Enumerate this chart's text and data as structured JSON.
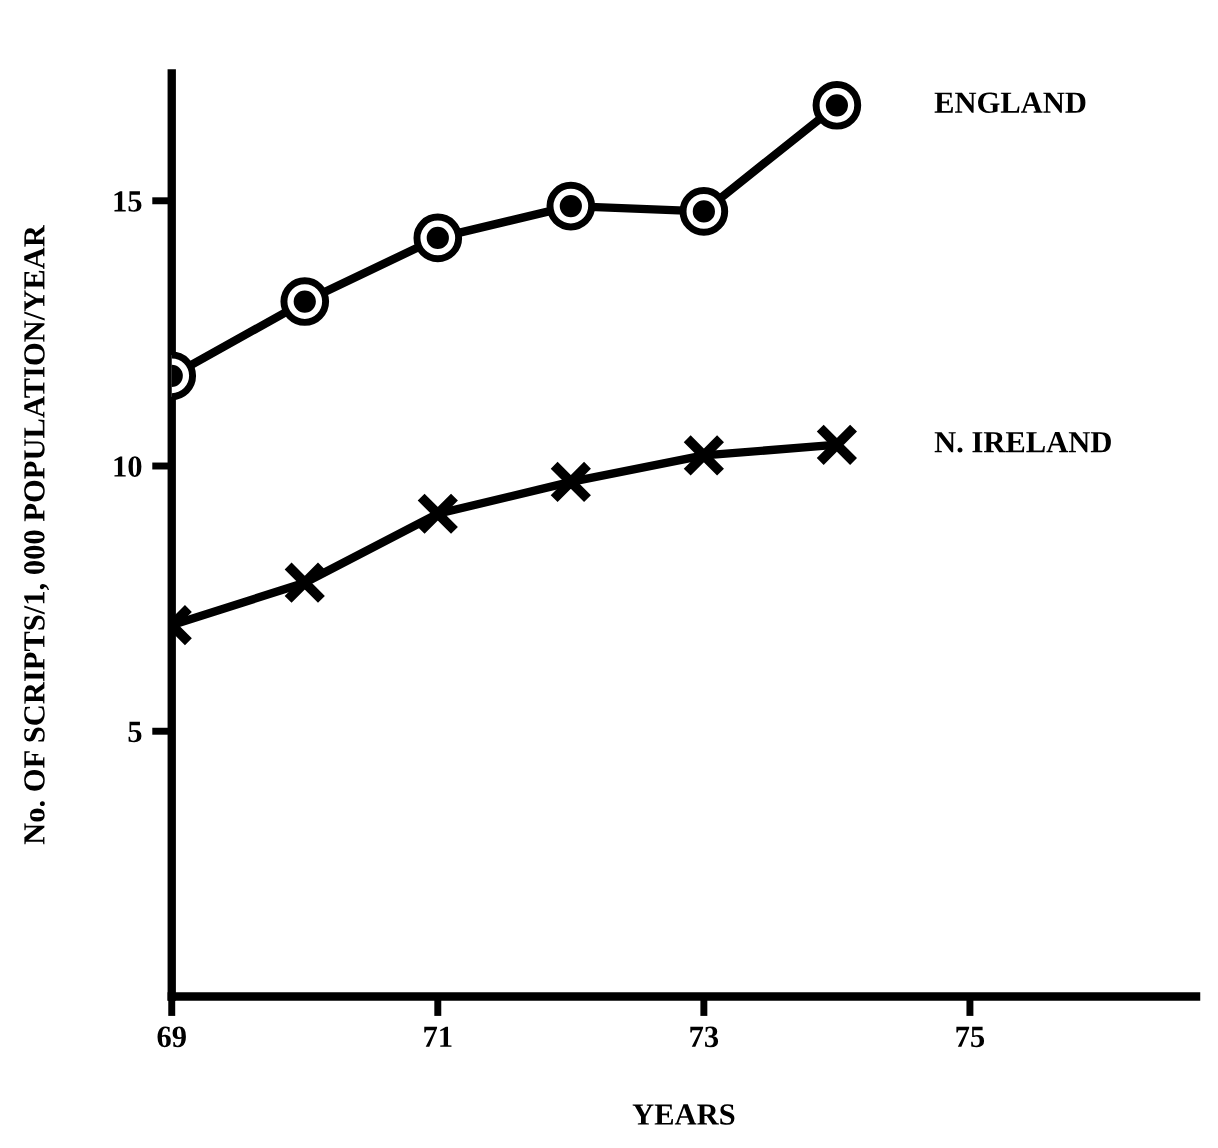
{
  "chart_data": {
    "type": "line",
    "xlabel": "YEARS",
    "ylabel": "No. OF SCRIPTS/1, 000 POPULATION/YEAR",
    "x": [
      69,
      70,
      71,
      72,
      73,
      74
    ],
    "xlim": [
      69,
      76.7
    ],
    "xticks": [
      69,
      71,
      73,
      75
    ],
    "ylim": [
      0,
      17.4
    ],
    "yticks": [
      5,
      10,
      15
    ],
    "grid": false,
    "legend": false,
    "line_style": "solid",
    "series": [
      {
        "name": "ENGLAND",
        "color": "#000000",
        "marker": "circle",
        "values": [
          11.7,
          13.1,
          14.3,
          14.9,
          14.8,
          16.8
        ]
      },
      {
        "name": "N. IRELAND",
        "color": "#000000",
        "marker": "cross",
        "values": [
          7.0,
          7.8,
          9.1,
          9.7,
          10.2,
          10.4
        ]
      }
    ]
  }
}
